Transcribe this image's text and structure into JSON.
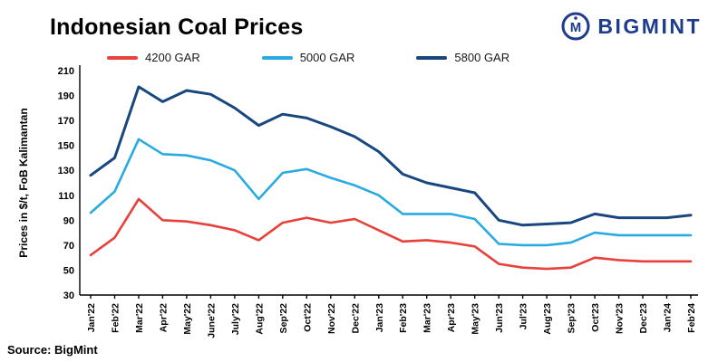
{
  "header": {
    "title": "Indonesian Coal Prices",
    "logo_text": "BIGMINT"
  },
  "footer": {
    "source": "Source: BigMint"
  },
  "chart_data": {
    "type": "line",
    "title": "Indonesian Coal Prices",
    "ylabel": "Prices in $/t, FoB Kalimantan",
    "xlabel": "",
    "ylim": [
      30,
      210
    ],
    "yticks": [
      30,
      50,
      70,
      90,
      110,
      130,
      150,
      170,
      190,
      210
    ],
    "grid": false,
    "legend_position": "top",
    "categories": [
      "Jan'22",
      "Feb'22",
      "Mar'22",
      "Apr'22",
      "May'22",
      "June'22",
      "July'22",
      "Aug'22",
      "Sep'22",
      "Oct'22",
      "Nov'22",
      "Dec'22",
      "Jan'23",
      "Feb'23",
      "Mar'23",
      "Apr'23",
      "May'23",
      "Jun'23",
      "Jul'23",
      "Aug'23",
      "Sep'23",
      "Oct'23",
      "Nov'23",
      "Dec'23",
      "Jan'24",
      "Feb'24"
    ],
    "series": [
      {
        "name": "4200 GAR",
        "color": "#e8403a",
        "values": [
          62,
          76,
          107,
          90,
          89,
          86,
          82,
          74,
          88,
          92,
          88,
          91,
          82,
          73,
          74,
          72,
          69,
          55,
          52,
          51,
          52,
          60,
          58,
          57,
          57,
          57
        ]
      },
      {
        "name": "5000 GAR",
        "color": "#29abe2",
        "values": [
          96,
          113,
          155,
          143,
          142,
          138,
          130,
          107,
          128,
          131,
          124,
          118,
          110,
          95,
          95,
          95,
          91,
          71,
          70,
          70,
          72,
          80,
          78,
          78,
          78,
          78
        ]
      },
      {
        "name": "5800 GAR",
        "color": "#17477e",
        "values": [
          126,
          140,
          197,
          185,
          194,
          191,
          180,
          166,
          175,
          172,
          165,
          157,
          145,
          127,
          120,
          116,
          112,
          90,
          86,
          87,
          88,
          95,
          92,
          92,
          92,
          94
        ]
      }
    ]
  }
}
